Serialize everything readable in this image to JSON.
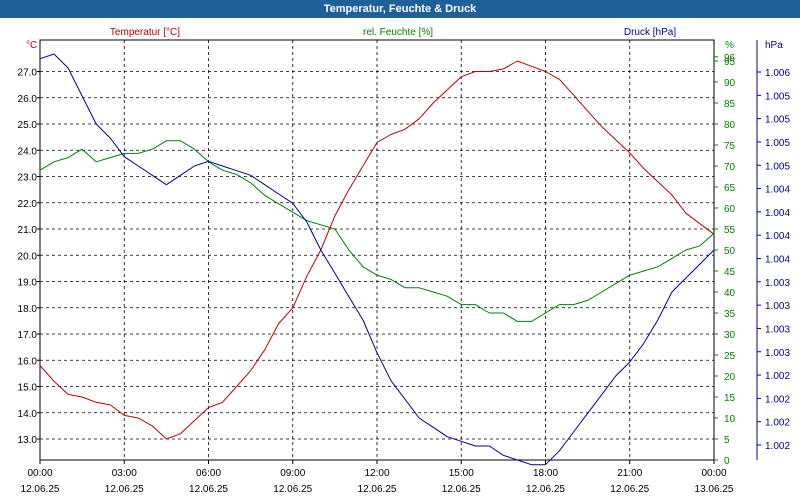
{
  "window": {
    "title": "Temperatur, Feuchte & Druck"
  },
  "chart_data": {
    "type": "line",
    "title": "Temperatur, Feuchte & Druck",
    "x_ticks": [
      {
        "time": "00:00",
        "date": "12.06.25"
      },
      {
        "time": "03:00",
        "date": "12.06.25"
      },
      {
        "time": "06:00",
        "date": "12.06.25"
      },
      {
        "time": "09:00",
        "date": "12.06.25"
      },
      {
        "time": "12:00",
        "date": "12.06.25"
      },
      {
        "time": "15:00",
        "date": "12.06.25"
      },
      {
        "time": "18:00",
        "date": "12.06.25"
      },
      {
        "time": "21:00",
        "date": "12.06.25"
      },
      {
        "time": "00:00",
        "date": "13.06.25"
      }
    ],
    "xlim": [
      0,
      24
    ],
    "grid": true,
    "axes": {
      "temperature": {
        "label": "Temperatur [°C]",
        "unit": "°C",
        "ylim": [
          12.2,
          28.2
        ],
        "ticks": [
          "27.0",
          "26.0",
          "25.0",
          "24.0",
          "23.0",
          "22.0",
          "21.0",
          "20.0",
          "19.0",
          "18.0",
          "17.0",
          "16.0",
          "15.0",
          "14.0",
          "13.0"
        ],
        "tick_values": [
          27,
          26,
          25,
          24,
          23,
          22,
          21,
          20,
          19,
          18,
          17,
          16,
          15,
          14,
          13
        ],
        "color": "#c00000"
      },
      "humidity": {
        "label": "rel. Feuchte [%]",
        "unit": "%",
        "ylim": [
          0,
          100
        ],
        "ticks": [
          "96",
          "95",
          "90",
          "85",
          "80",
          "75",
          "70",
          "65",
          "60",
          "55",
          "50",
          "45",
          "40",
          "35",
          "30",
          "25",
          "20",
          "15",
          "10",
          "5",
          "0"
        ],
        "tick_values": [
          96,
          95,
          90,
          85,
          80,
          75,
          70,
          65,
          60,
          55,
          50,
          45,
          40,
          35,
          30,
          25,
          20,
          15,
          10,
          5,
          0
        ],
        "color": "#008000"
      },
      "pressure": {
        "label": "Druck [hPa]",
        "unit": "hPa",
        "ylim": [
          1001.8,
          1006.3
        ],
        "ticks": [
          "1.006",
          "1.005",
          "1.005",
          "1.005",
          "1.005",
          "1.004",
          "1.004",
          "1.004",
          "1.004",
          "1.003",
          "1.003",
          "1.003",
          "1.003",
          "1.002",
          "1.002",
          "1.002",
          "1.002"
        ],
        "color": "#000099"
      }
    },
    "series": [
      {
        "name": "Temperatur [°C]",
        "axis": "temperature",
        "color": "#c00000",
        "x": [
          0,
          0.5,
          1,
          1.5,
          2,
          2.5,
          3,
          3.5,
          4,
          4.5,
          5,
          5.5,
          6,
          6.5,
          7,
          7.5,
          8,
          8.5,
          9,
          9.5,
          10,
          10.5,
          11,
          11.5,
          12,
          12.5,
          13,
          13.5,
          14,
          14.5,
          15,
          15.5,
          16,
          16.5,
          17,
          17.5,
          18,
          18.5,
          19,
          19.5,
          20,
          20.5,
          21,
          21.5,
          22,
          22.5,
          23,
          23.5,
          24
        ],
        "values": [
          15.8,
          15.2,
          14.7,
          14.6,
          14.4,
          14.3,
          13.9,
          13.8,
          13.5,
          13.0,
          13.2,
          13.7,
          14.2,
          14.4,
          15.0,
          15.6,
          16.4,
          17.4,
          18.0,
          19.2,
          20.2,
          21.5,
          22.5,
          23.4,
          24.3,
          24.6,
          24.8,
          25.2,
          25.8,
          26.3,
          26.8,
          27.0,
          27.0,
          27.1,
          27.4,
          27.2,
          27.0,
          26.7,
          26.1,
          25.5,
          24.9,
          24.4,
          23.9,
          23.3,
          22.8,
          22.3,
          21.6,
          21.2,
          20.8
        ]
      },
      {
        "name": "rel. Feuchte [%]",
        "axis": "humidity",
        "color": "#008000",
        "x": [
          0,
          0.5,
          1,
          1.5,
          2,
          2.5,
          3,
          3.5,
          4,
          4.5,
          5,
          5.5,
          6,
          6.5,
          7,
          7.5,
          8,
          8.5,
          9,
          9.5,
          10,
          10.5,
          11,
          11.5,
          12,
          12.5,
          13,
          13.5,
          14,
          14.5,
          15,
          15.5,
          16,
          16.5,
          17,
          17.5,
          18,
          18.5,
          19,
          19.5,
          20,
          20.5,
          21,
          21.5,
          22,
          22.5,
          23,
          23.5,
          24
        ],
        "values": [
          69,
          71,
          72,
          74,
          71,
          72,
          73,
          73,
          74,
          76,
          76,
          74,
          71,
          69,
          68,
          66,
          63,
          61,
          59,
          57,
          56,
          55,
          50,
          46,
          44,
          43,
          41,
          41,
          40,
          39,
          37,
          37,
          35,
          35,
          33,
          33,
          35,
          37,
          37,
          38,
          40,
          42,
          44,
          45,
          46,
          48,
          50,
          51,
          54
        ]
      },
      {
        "name": "Druck [hPa]",
        "axis": "pressure",
        "color": "#000099",
        "x": [
          0,
          0.5,
          1,
          1.5,
          2,
          2.5,
          3,
          3.5,
          4,
          4.5,
          5,
          5.5,
          6,
          6.5,
          7,
          7.5,
          8,
          8.5,
          9,
          9.5,
          10,
          10.5,
          11,
          11.5,
          12,
          12.5,
          13,
          13.5,
          14,
          14.5,
          15,
          15.5,
          16,
          16.5,
          17,
          17.5,
          18,
          18.5,
          19,
          19.5,
          20,
          20.5,
          21,
          21.5,
          22,
          22.5,
          23,
          23.5,
          24
        ],
        "values": [
          1006.1,
          1006.15,
          1006.0,
          1005.7,
          1005.4,
          1005.25,
          1005.05,
          1004.95,
          1004.85,
          1004.75,
          1004.85,
          1004.95,
          1005.0,
          1004.95,
          1004.9,
          1004.85,
          1004.75,
          1004.65,
          1004.55,
          1004.35,
          1004.05,
          1003.8,
          1003.55,
          1003.3,
          1002.95,
          1002.65,
          1002.45,
          1002.25,
          1002.15,
          1002.05,
          1002.0,
          1001.95,
          1001.95,
          1001.85,
          1001.8,
          1001.75,
          1001.75,
          1001.9,
          1002.1,
          1002.3,
          1002.5,
          1002.7,
          1002.85,
          1003.05,
          1003.3,
          1003.6,
          1003.75,
          1003.9,
          1004.05
        ]
      }
    ]
  }
}
